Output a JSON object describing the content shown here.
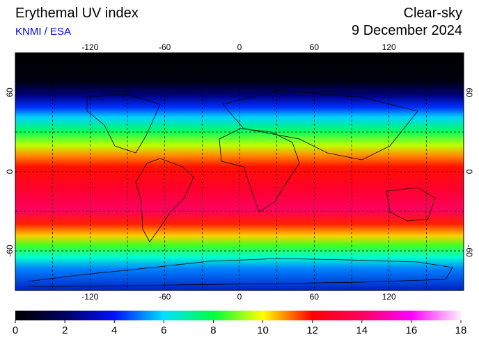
{
  "header": {
    "title": "Erythemal UV index",
    "source": "KNMI / ESA",
    "sky": "Clear-sky",
    "date": "9 December 2024"
  },
  "map": {
    "xlim": [
      -180,
      180
    ],
    "ylim": [
      -90,
      90
    ],
    "lon_ticks": [
      -120,
      -60,
      0,
      60,
      120
    ],
    "lat_ticks": [
      60,
      0,
      -60
    ],
    "lon_grid": [
      -150,
      -120,
      -90,
      -60,
      -30,
      0,
      30,
      60,
      90,
      120,
      150
    ],
    "lat_grid": [
      60,
      30,
      0,
      -30,
      -60
    ]
  },
  "colorbar": {
    "lim": [
      0,
      18
    ],
    "ticks": [
      0,
      2,
      4,
      6,
      8,
      10,
      12,
      14,
      16,
      18
    ],
    "colors": [
      "#000000",
      "#000060",
      "#0010ff",
      "#00e0ff",
      "#00ff40",
      "#ffff00",
      "#ff0000",
      "#ff0060",
      "#ff00ff",
      "#fff0ff"
    ]
  }
}
